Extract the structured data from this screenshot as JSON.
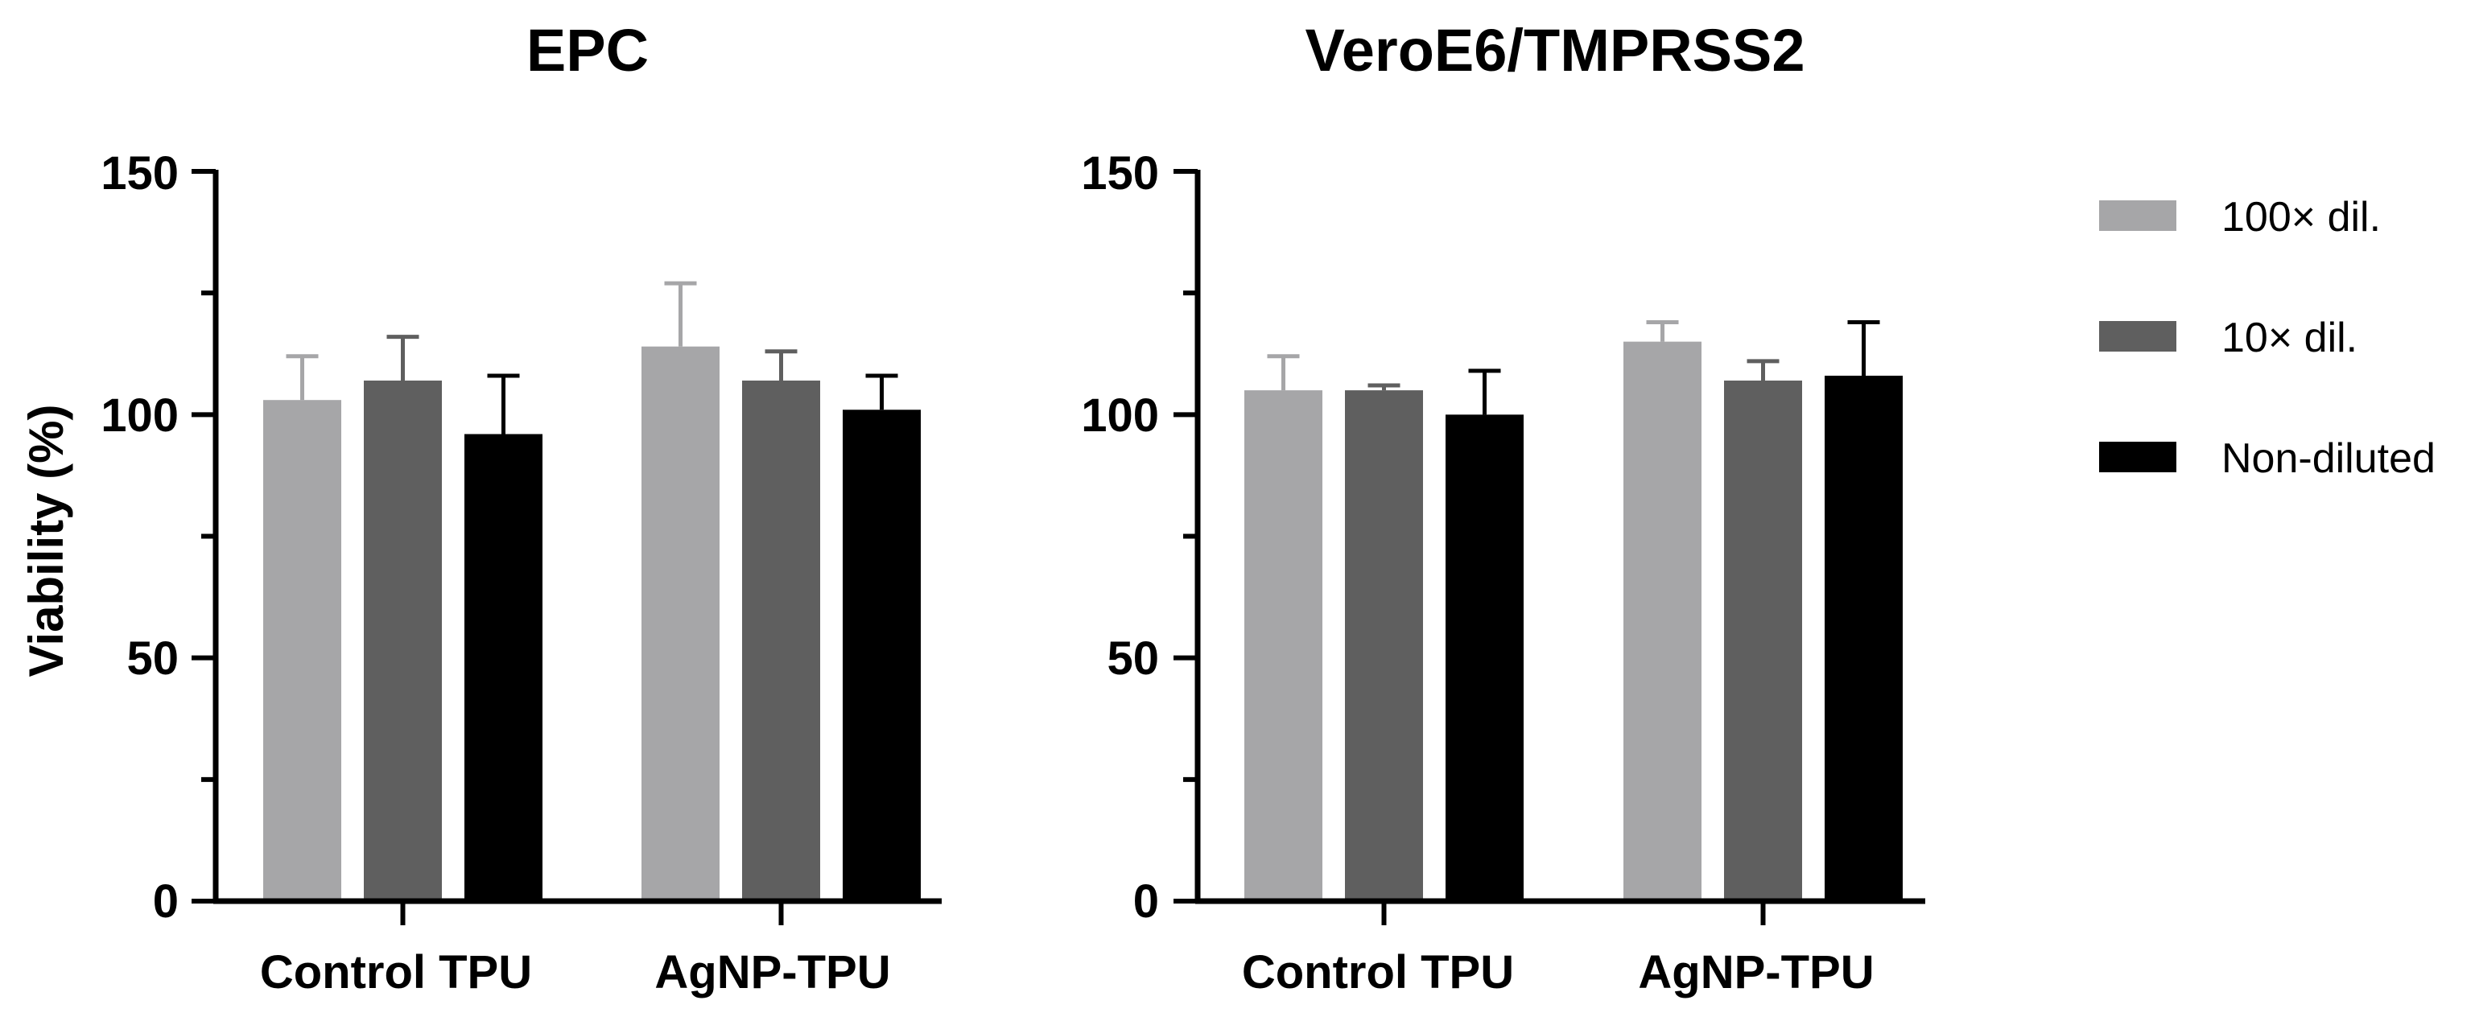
{
  "chart_data": [
    {
      "type": "bar",
      "title": "EPC",
      "ylabel": "Viability (%)",
      "xlabel": "",
      "ylim": [
        0,
        150
      ],
      "yticks": [
        "0",
        "50",
        "100",
        "150"
      ],
      "categories": [
        "Control TPU",
        "AgNP-TPU"
      ],
      "series": [
        {
          "name": "100× dil.",
          "color": "#a6a6a8",
          "values": [
            103,
            114
          ],
          "errors": [
            9,
            13
          ]
        },
        {
          "name": "10× dil.",
          "color": "#5f5f5f",
          "values": [
            107,
            107
          ],
          "errors": [
            9,
            6
          ]
        },
        {
          "name": "Non-diluted",
          "color": "#000000",
          "values": [
            96,
            101
          ],
          "errors": [
            12,
            7
          ]
        }
      ]
    },
    {
      "type": "bar",
      "title": "VeroE6/TMPRSS2",
      "ylabel": "",
      "xlabel": "",
      "ylim": [
        0,
        150
      ],
      "yticks": [
        "0",
        "50",
        "100",
        "150"
      ],
      "categories": [
        "Control TPU",
        "AgNP-TPU"
      ],
      "series": [
        {
          "name": "100× dil.",
          "color": "#a6a6a8",
          "values": [
            105,
            115
          ],
          "errors": [
            7,
            4
          ]
        },
        {
          "name": "10× dil.",
          "color": "#5f5f5f",
          "values": [
            105,
            107
          ],
          "errors": [
            1,
            4
          ]
        },
        {
          "name": "Non-diluted",
          "color": "#000000",
          "values": [
            100,
            108
          ],
          "errors": [
            9,
            11
          ]
        }
      ]
    }
  ],
  "legend": {
    "items": [
      {
        "label": "100× dil.",
        "color": "#a6a6a8"
      },
      {
        "label": "10× dil.",
        "color": "#5f5f5f"
      },
      {
        "label": "Non-diluted",
        "color": "#000000"
      }
    ]
  }
}
